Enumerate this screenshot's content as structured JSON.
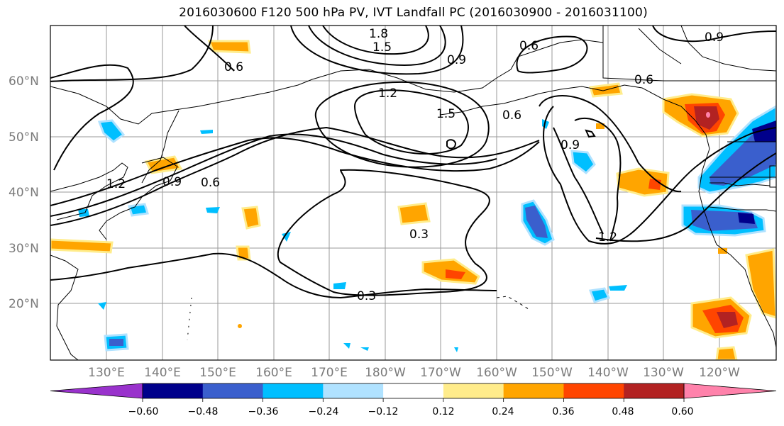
{
  "title": "2016030600 F120 500 hPa PV, IVT Landfall PC (2016030900 - 2016031100)",
  "lat_labels": [
    "60°N",
    "50°N",
    "40°N",
    "30°N",
    "20°N"
  ],
  "lon_labels": [
    "130°E",
    "140°E",
    "150°E",
    "160°E",
    "170°E",
    "180°W",
    "170°W",
    "160°W",
    "150°W",
    "140°W",
    "130°W",
    "120°W"
  ],
  "contour_labels": [
    "1.8",
    "1.5",
    "0.9",
    "0.6",
    "0.9",
    "0.6",
    "1.2",
    "1.5",
    "0.6",
    "0.6",
    "0.9",
    "1.2",
    "1.2",
    "0.3",
    "0.3",
    "0.9",
    "0.6"
  ],
  "colorbar": {
    "colors": [
      "#9932cc",
      "#00008b",
      "#3a5fcd",
      "#00bfff",
      "#b0e2ff",
      "#ffffff",
      "#ffec8b",
      "#ffa500",
      "#ff4500",
      "#b22222",
      "#ff82ab"
    ],
    "tick_labels": [
      "−0.60",
      "−0.48",
      "−0.36",
      "−0.24",
      "−0.12",
      "0.12",
      "0.24",
      "0.36",
      "0.48",
      "0.60"
    ]
  }
}
